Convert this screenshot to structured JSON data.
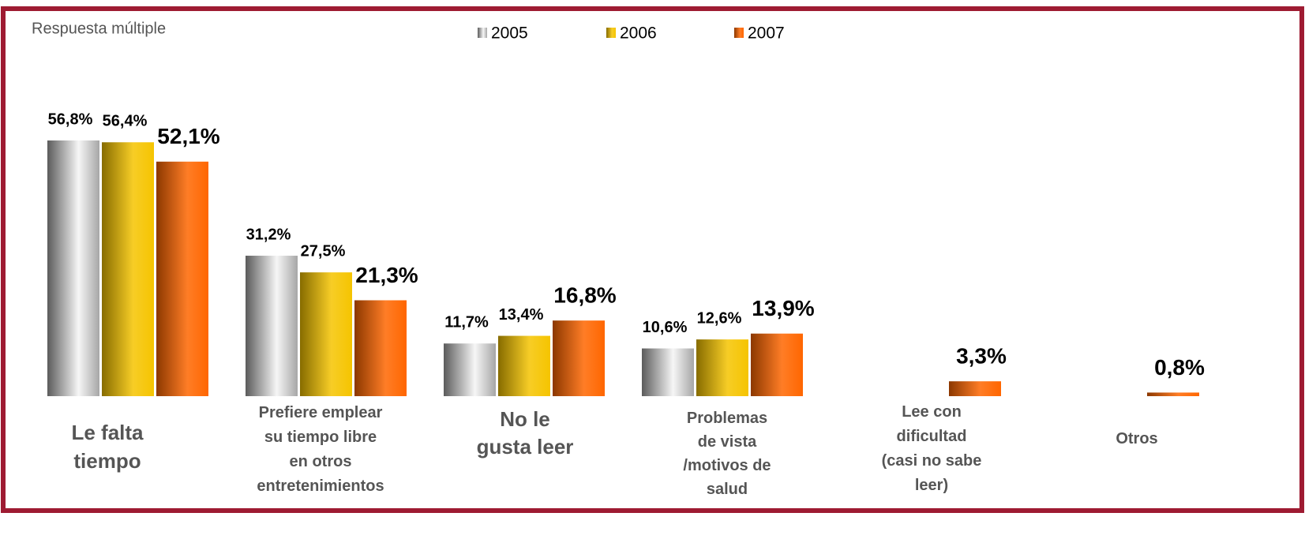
{
  "chart_data": {
    "type": "bar",
    "subtitle": "Respuesta múltiple",
    "categories": [
      "Le falta\ntiempo",
      "Prefiere emplear\nsu tiempo libre\nen otros\nentretenimientos",
      "No le\ngusta leer",
      "Problemas\nde vista\n/motivos de\nsalud",
      "Lee con\ndificultad\n(casi no sabe\nleer)",
      "Otros"
    ],
    "series": [
      {
        "name": "2005",
        "color": "#a6a6a6",
        "values": [
          56.8,
          31.2,
          11.7,
          10.6,
          null,
          null
        ],
        "value_labels": [
          "56,8%",
          "31,2%",
          "11,7%",
          "10,6%",
          null,
          null
        ]
      },
      {
        "name": "2006",
        "color": "#f5c400",
        "values": [
          56.4,
          27.5,
          13.4,
          12.6,
          null,
          null
        ],
        "value_labels": [
          "56,4%",
          "27,5%",
          "13,4%",
          "12,6%",
          null,
          null
        ]
      },
      {
        "name": "2007",
        "color": "#ff6600",
        "values": [
          52.1,
          21.3,
          16.8,
          13.9,
          3.3,
          0.8
        ],
        "value_labels": [
          "52,1%",
          "21,3%",
          "16,8%",
          "13,9%",
          "3,3%",
          "0,8%"
        ]
      }
    ],
    "ylim": [
      0,
      56.8
    ],
    "grid": false
  }
}
